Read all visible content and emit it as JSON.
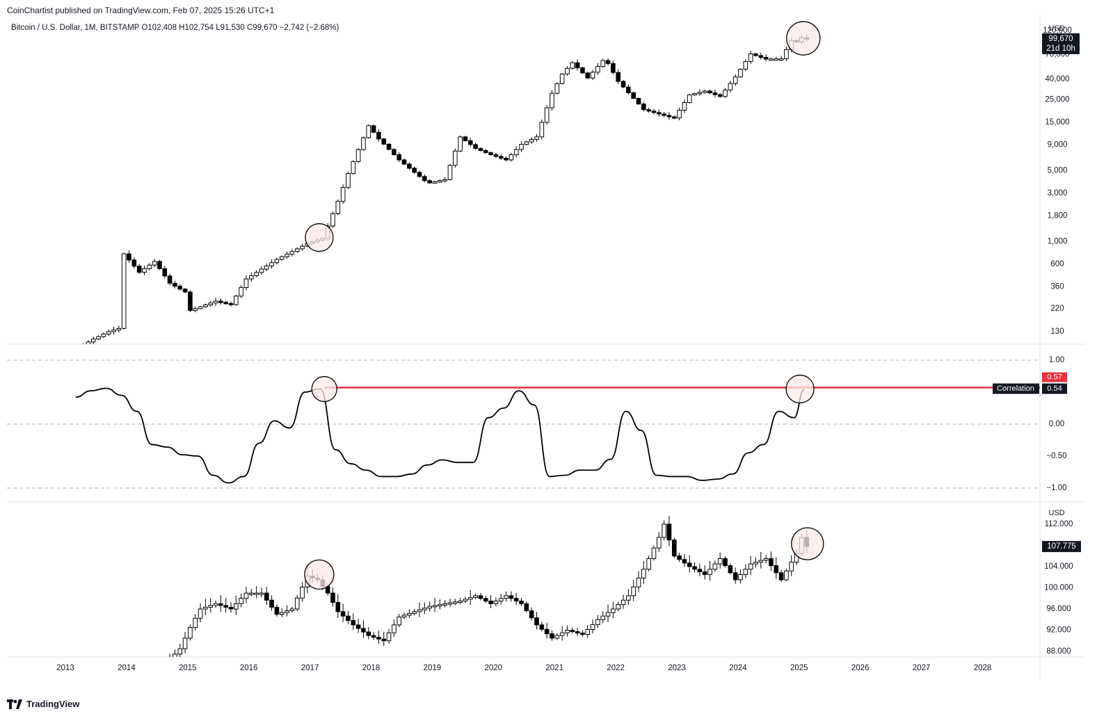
{
  "header": {
    "publisher_line": "CoinChartist published on TradingView.com, Feb 07, 2025 15:26 UTC+1",
    "symbol_line": "Bitcoin / U.S. Dollar, 1M, BITSTAMP  O102,408  H102,754  L91,530  C99,670  −2,742 (−2.68%)"
  },
  "footer": {
    "brand": "TradingView",
    "logo_icon": "tradingview-logo-icon"
  },
  "colors": {
    "up": "#ffffff",
    "down": "#000000",
    "accent": "#e8313e",
    "highlight_fill": "#fde9e9",
    "grid": "#b2b5be"
  },
  "chart_data": [
    {
      "type": "line",
      "id": "btc_price",
      "scale": "log",
      "currency_label": "USD",
      "ylim": [
        98,
        150000
      ],
      "yticks": [
        130,
        220,
        360,
        600,
        "1,000",
        "1,800",
        "3,000",
        "5,000",
        "9,000",
        "15,000",
        "25,000",
        "40,000",
        "70,000",
        "120,000"
      ],
      "price_badge": {
        "value": "99,670",
        "countdown": "21d 10h"
      },
      "highlights": [
        "2017-02",
        "2025-01"
      ],
      "x": [
        "2013-03",
        "2013-06",
        "2013-09",
        "2013-11",
        "2013-12",
        "2014-03",
        "2014-06",
        "2014-09",
        "2014-12",
        "2015-01",
        "2015-06",
        "2015-09",
        "2015-12",
        "2016-06",
        "2016-12",
        "2017-03",
        "2017-06",
        "2017-08",
        "2017-12",
        "2018-02",
        "2018-06",
        "2018-11",
        "2018-12",
        "2019-03",
        "2019-06",
        "2019-09",
        "2019-12",
        "2020-03",
        "2020-06",
        "2020-09",
        "2020-12",
        "2021-02",
        "2021-04",
        "2021-07",
        "2021-10",
        "2021-11",
        "2022-01",
        "2022-06",
        "2022-11",
        "2022-12",
        "2023-03",
        "2023-06",
        "2023-09",
        "2023-12",
        "2024-03",
        "2024-06",
        "2024-09",
        "2024-11",
        "2024-12",
        "2025-01",
        "2025-02"
      ],
      "values": [
        90,
        110,
        130,
        140,
        760,
        500,
        640,
        390,
        320,
        210,
        260,
        240,
        430,
        670,
        960,
        1080,
        2500,
        4700,
        13900,
        10300,
        6400,
        4000,
        3800,
        4100,
        10800,
        8300,
        7200,
        6400,
        9100,
        10800,
        29000,
        45000,
        58000,
        41000,
        61000,
        57000,
        38000,
        20000,
        17000,
        16600,
        28000,
        30500,
        27000,
        42000,
        71000,
        63000,
        63500,
        96000,
        93400,
        102400,
        99670
      ]
    },
    {
      "type": "line",
      "id": "correlation",
      "ylim": [
        -1,
        1
      ],
      "yticks": [
        "1.00",
        "0.00",
        "−0.50",
        "−1.00"
      ],
      "dashed_levels": [
        1,
        0,
        -1
      ],
      "reference_level": 0.57,
      "reference_badge": "0.57",
      "series_label": "Correlation",
      "current_badge": "0.54",
      "highlights": [
        "2017-03",
        "2025-02"
      ],
      "x": [
        "2013-03",
        "2013-06",
        "2013-09",
        "2013-12",
        "2014-03",
        "2014-06",
        "2014-09",
        "2014-12",
        "2015-03",
        "2015-06",
        "2015-09",
        "2015-12",
        "2016-03",
        "2016-06",
        "2016-09",
        "2016-12",
        "2017-03",
        "2017-06",
        "2017-09",
        "2017-12",
        "2018-03",
        "2018-06",
        "2018-09",
        "2018-12",
        "2019-03",
        "2019-06",
        "2019-09",
        "2019-12",
        "2020-03",
        "2020-06",
        "2020-09",
        "2020-12",
        "2021-03",
        "2021-06",
        "2021-09",
        "2021-12",
        "2022-03",
        "2022-06",
        "2022-09",
        "2022-12",
        "2023-03",
        "2023-06",
        "2023-09",
        "2023-12",
        "2024-03",
        "2024-06",
        "2024-09",
        "2024-12",
        "2025-02"
      ],
      "values": [
        0.42,
        0.52,
        0.56,
        0.45,
        0.2,
        -0.32,
        -0.36,
        -0.48,
        -0.5,
        -0.8,
        -0.92,
        -0.82,
        -0.3,
        0.05,
        -0.06,
        0.5,
        0.55,
        -0.4,
        -0.62,
        -0.72,
        -0.82,
        -0.82,
        -0.78,
        -0.64,
        -0.56,
        -0.6,
        -0.6,
        0.1,
        0.25,
        0.52,
        0.3,
        -0.82,
        -0.8,
        -0.72,
        -0.72,
        -0.55,
        0.2,
        -0.1,
        -0.8,
        -0.82,
        -0.82,
        -0.88,
        -0.86,
        -0.78,
        -0.45,
        -0.32,
        0.2,
        0.1,
        0.54
      ]
    },
    {
      "type": "line",
      "id": "lower_index",
      "currency_label": "USD",
      "ylim": [
        86,
        118
      ],
      "yticks": [
        "88.000",
        "92.000",
        "96.000",
        "100.000",
        "104.000",
        "108.000",
        "112.000"
      ],
      "price_badge": "107.775",
      "highlights": [
        "2017-02",
        "2025-01"
      ],
      "xticks": [
        "2013",
        "2014",
        "2015",
        "2016",
        "2017",
        "2018",
        "2019",
        "2020",
        "2021",
        "2022",
        "2023",
        "2024",
        "2025",
        "2026",
        "2027",
        "2028"
      ],
      "x": [
        "2014-09",
        "2014-11",
        "2015-01",
        "2015-03",
        "2015-06",
        "2015-09",
        "2015-12",
        "2016-03",
        "2016-06",
        "2016-09",
        "2016-12",
        "2017-02",
        "2017-04",
        "2017-06",
        "2017-09",
        "2017-12",
        "2018-03",
        "2018-06",
        "2018-09",
        "2018-12",
        "2019-03",
        "2019-06",
        "2019-09",
        "2019-12",
        "2020-03",
        "2020-06",
        "2020-09",
        "2020-12",
        "2021-03",
        "2021-06",
        "2021-09",
        "2021-12",
        "2022-03",
        "2022-06",
        "2022-09",
        "2022-10",
        "2022-12",
        "2023-03",
        "2023-06",
        "2023-09",
        "2023-12",
        "2024-03",
        "2024-06",
        "2024-09",
        "2024-12",
        "2025-01",
        "2025-02"
      ],
      "values": [
        86.5,
        88.5,
        92.5,
        96,
        97,
        96,
        99,
        99,
        95,
        96,
        102.2,
        101.5,
        99,
        95.5,
        93,
        91,
        90,
        94.5,
        95.5,
        96.5,
        97,
        97.5,
        98.5,
        97,
        98.5,
        97,
        93,
        90.5,
        92,
        91.2,
        94,
        96,
        98.5,
        103.5,
        109.5,
        112,
        106,
        104,
        102.5,
        105.5,
        101.5,
        104.5,
        105.5,
        101.5,
        106.5,
        109.5,
        107.775
      ]
    }
  ]
}
